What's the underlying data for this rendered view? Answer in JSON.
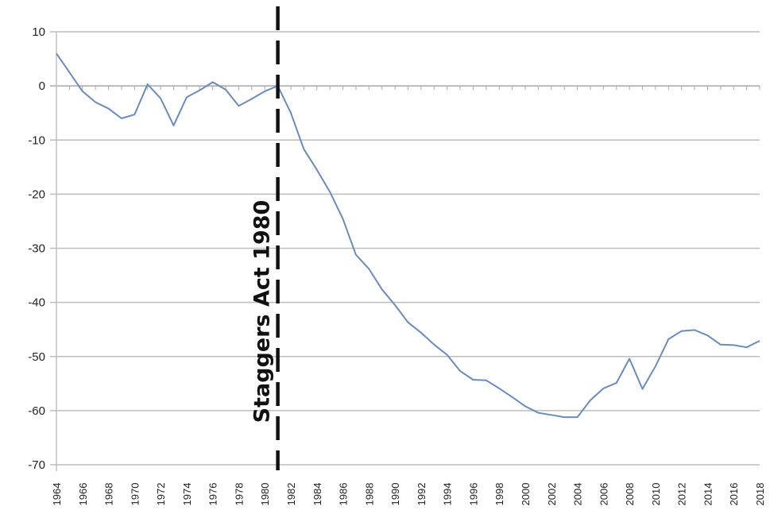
{
  "chart_data": {
    "type": "line",
    "title": "",
    "xlabel": "",
    "ylabel": "",
    "xlim": [
      1964,
      2018
    ],
    "ylim": [
      -70,
      10
    ],
    "y_ticks": [
      "10",
      "0",
      "-10",
      "-20",
      "-30",
      "-40",
      "-50",
      "-60",
      "-70"
    ],
    "x_tick_labels": [
      "1964",
      "1966",
      "1968",
      "1970",
      "1972",
      "1974",
      "1976",
      "1978",
      "1980",
      "1982",
      "1984",
      "1986",
      "1988",
      "1990",
      "1992",
      "1994",
      "1996",
      "1998",
      "2000",
      "2002",
      "2004",
      "2006",
      "2008",
      "2010",
      "2012",
      "2014",
      "2016",
      "2018"
    ],
    "grid": "horizontal",
    "series_color": "#6b8cba",
    "series": [
      {
        "x": [
          1964,
          1965,
          1966,
          1967,
          1968,
          1969,
          1970,
          1971,
          1972,
          1973,
          1974,
          1975,
          1976,
          1977,
          1978,
          1979,
          1980,
          1981,
          1982,
          1983,
          1984,
          1985,
          1986,
          1987,
          1988,
          1989,
          1990,
          1991,
          1992,
          1993,
          1994,
          1995,
          1996,
          1997,
          1998,
          1999,
          2000,
          2001,
          2002,
          2003,
          2004,
          2005,
          2006,
          2007,
          2008,
          2009,
          2010,
          2011,
          2012,
          2013,
          2014,
          2015,
          2016,
          2017,
          2018
        ],
        "y": [
          6,
          2.5,
          -1,
          -3,
          -4.2,
          -6,
          -5.3,
          0.3,
          -2.3,
          -7.3,
          -2.1,
          -0.8,
          0.7,
          -0.7,
          -3.7,
          -2.4,
          -1,
          0,
          -5,
          -11.7,
          -15.5,
          -19.6,
          -24.6,
          -31.2,
          -33.8,
          -37.6,
          -40.5,
          -43.7,
          -45.6,
          -47.8,
          -49.7,
          -52.7,
          -54.3,
          -54.4,
          -55.9,
          -57.5,
          -59.2,
          -60.4,
          -60.8,
          -61.2,
          -61.2,
          -58.1,
          -55.9,
          -54.9,
          -50.4,
          -56,
          -51.8,
          -46.8,
          -45.3,
          -45.1,
          -46.1,
          -47.8,
          -47.9,
          -48.3,
          -47.1
        ]
      }
    ],
    "annotations": [
      {
        "text": "Staggers Act 1980",
        "x": 1981,
        "style": "dashed vertical line",
        "orientation": "vertical"
      }
    ]
  }
}
